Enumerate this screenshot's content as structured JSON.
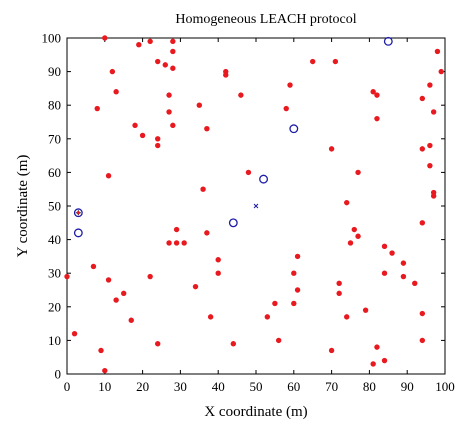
{
  "chart_data": {
    "type": "scatter",
    "title": "Homogeneous LEACH protocol",
    "xlabel": "X coordinate (m)",
    "ylabel": "Y coordinate (m)",
    "xlim": [
      0,
      100
    ],
    "ylim": [
      0,
      100
    ],
    "xticks": [
      "0",
      "10",
      "20",
      "30",
      "40",
      "50",
      "60",
      "70",
      "80",
      "90",
      "100"
    ],
    "yticks": [
      "0",
      "10",
      "20",
      "30",
      "40",
      "50",
      "60",
      "70",
      "80",
      "90",
      "100"
    ],
    "grid": false,
    "colors": {
      "node": "#e8191f",
      "cluster_head": "#1c1ca8",
      "base_station": "#1c1ca8"
    },
    "series": [
      {
        "marker": "dot",
        "points": [
          [
            10,
            100
          ],
          [
            19,
            98
          ],
          [
            22,
            99
          ],
          [
            28,
            99
          ],
          [
            28,
            96
          ],
          [
            24,
            93
          ],
          [
            12,
            90
          ],
          [
            26,
            92
          ],
          [
            28,
            91
          ],
          [
            42,
            90
          ],
          [
            42,
            89
          ],
          [
            46,
            83
          ],
          [
            13,
            84
          ],
          [
            8,
            79
          ],
          [
            27,
            83
          ],
          [
            27,
            78
          ],
          [
            18,
            74
          ],
          [
            20,
            71
          ],
          [
            24,
            70
          ],
          [
            24,
            68
          ],
          [
            28,
            74
          ],
          [
            37,
            73
          ],
          [
            35,
            80
          ],
          [
            65,
            93
          ],
          [
            71,
            93
          ],
          [
            59,
            86
          ],
          [
            58,
            79
          ],
          [
            81,
            84
          ],
          [
            82,
            83
          ],
          [
            82,
            76
          ],
          [
            94,
            82
          ],
          [
            96,
            86
          ],
          [
            97,
            78
          ],
          [
            98,
            96
          ],
          [
            99,
            90
          ],
          [
            70,
            67
          ],
          [
            77,
            60
          ],
          [
            74,
            51
          ],
          [
            76,
            43
          ],
          [
            77,
            41
          ],
          [
            75,
            39
          ],
          [
            94,
            67
          ],
          [
            96,
            68
          ],
          [
            96,
            62
          ],
          [
            97,
            54
          ],
          [
            97,
            53
          ],
          [
            94,
            45
          ],
          [
            11,
            59
          ],
          [
            36,
            55
          ],
          [
            48,
            60
          ],
          [
            29,
            43
          ],
          [
            31,
            39
          ],
          [
            29,
            39
          ],
          [
            27,
            39
          ],
          [
            37,
            42
          ],
          [
            40,
            34
          ],
          [
            40,
            30
          ],
          [
            22,
            29
          ],
          [
            15,
            24
          ],
          [
            13,
            22
          ],
          [
            11,
            28
          ],
          [
            7,
            32
          ],
          [
            0,
            29
          ],
          [
            17,
            16
          ],
          [
            34,
            26
          ],
          [
            38,
            17
          ],
          [
            61,
            35
          ],
          [
            60,
            30
          ],
          [
            61,
            25
          ],
          [
            60,
            21
          ],
          [
            55,
            21
          ],
          [
            53,
            17
          ],
          [
            56,
            10
          ],
          [
            70,
            7
          ],
          [
            72,
            24
          ],
          [
            72,
            27
          ],
          [
            74,
            17
          ],
          [
            79,
            19
          ],
          [
            84,
            30
          ],
          [
            84,
            38
          ],
          [
            86,
            36
          ],
          [
            89,
            33
          ],
          [
            89,
            29
          ],
          [
            92,
            27
          ],
          [
            94,
            18
          ],
          [
            94,
            10
          ],
          [
            82,
            8
          ],
          [
            81,
            3
          ],
          [
            84,
            4
          ],
          [
            2,
            12
          ],
          [
            9,
            7
          ],
          [
            10,
            1
          ],
          [
            24,
            9
          ],
          [
            44,
            9
          ]
        ]
      },
      {
        "marker": "circle",
        "points": [
          [
            3,
            42
          ],
          [
            44,
            45
          ],
          [
            52,
            58
          ],
          [
            60,
            73
          ],
          [
            85,
            99
          ]
        ]
      },
      {
        "marker": "x",
        "points": [
          [
            50,
            50
          ]
        ]
      },
      {
        "marker": "circled-dot",
        "points": [
          [
            3,
            48
          ]
        ]
      }
    ]
  }
}
